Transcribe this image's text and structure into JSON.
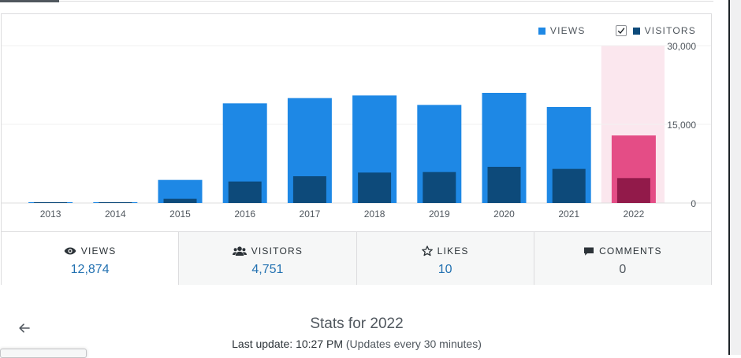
{
  "legend": {
    "views": "VIEWS",
    "visitors": "VISITORS",
    "visitors_checked": true
  },
  "colors": {
    "views": "#1e88e5",
    "visitors": "#0d4a7a",
    "views_highlight": "#e44d86",
    "visitors_highlight": "#921a4a",
    "highlight_bg": "#fbe7ee",
    "accent": "#2271b1"
  },
  "chart_data": {
    "type": "bar",
    "categories": [
      "2013",
      "2014",
      "2015",
      "2016",
      "2017",
      "2018",
      "2019",
      "2020",
      "2021",
      "2022"
    ],
    "series": [
      {
        "name": "VIEWS",
        "values": [
          150,
          100,
          4400,
          19000,
          20000,
          20500,
          18700,
          21000,
          18300,
          12874
        ]
      },
      {
        "name": "VISITORS",
        "values": [
          80,
          50,
          800,
          4100,
          5100,
          5800,
          5900,
          6900,
          6500,
          4751
        ]
      }
    ],
    "y_ticks": [
      "30,000",
      "15,000",
      "0"
    ],
    "ylim": [
      0,
      30000
    ],
    "highlighted_category": "2022"
  },
  "stats": [
    {
      "label": "VIEWS",
      "value": "12,874",
      "icon": "eye-icon"
    },
    {
      "label": "VISITORS",
      "value": "4,751",
      "icon": "people-icon"
    },
    {
      "label": "LIKES",
      "value": "10",
      "icon": "star-icon"
    },
    {
      "label": "COMMENTS",
      "value": "0",
      "icon": "comment-icon"
    }
  ],
  "header": {
    "title": "Stats for 2022",
    "update_label": "Last update: 10:27 PM",
    "update_note": "(Updates every 30 minutes)"
  }
}
